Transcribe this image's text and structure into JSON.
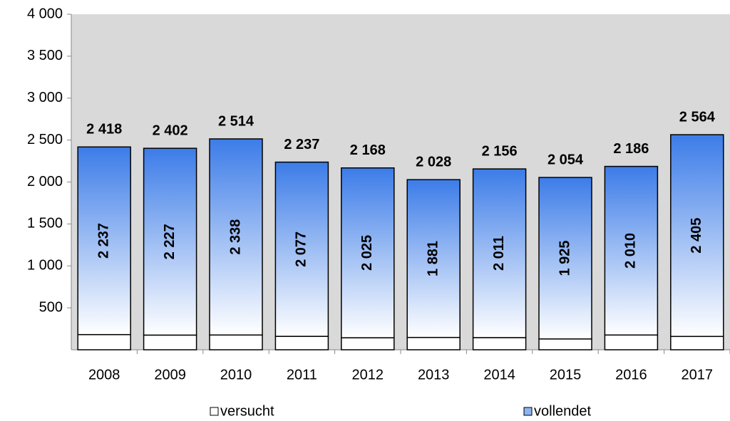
{
  "chart_data": {
    "type": "stacked_bar",
    "categories": [
      "2008",
      "2009",
      "2010",
      "2011",
      "2012",
      "2013",
      "2014",
      "2015",
      "2016",
      "2017"
    ],
    "series": [
      {
        "name": "versucht",
        "color": "#ffffff",
        "values": [
          181,
          175,
          176,
          160,
          143,
          147,
          145,
          129,
          176,
          159
        ]
      },
      {
        "name": "vollendet",
        "color": "#3c7ce8",
        "values": [
          2237,
          2227,
          2338,
          2077,
          2025,
          1881,
          2011,
          1925,
          2010,
          2405
        ],
        "value_labels": [
          "2 237",
          "2 227",
          "2 338",
          "2 077",
          "2 025",
          "1 881",
          "2 011",
          "1 925",
          "2 010",
          "2 405"
        ]
      }
    ],
    "totals": [
      2418,
      2402,
      2514,
      2237,
      2168,
      2028,
      2156,
      2054,
      2186,
      2564
    ],
    "total_labels": [
      "2 418",
      "2 402",
      "2 514",
      "2 237",
      "2 168",
      "2 028",
      "2 156",
      "2 054",
      "2 186",
      "2 564"
    ],
    "ylim": [
      0,
      4000
    ],
    "yticks": [
      {
        "value": 500,
        "label": "500"
      },
      {
        "value": 1000,
        "label": "1 000"
      },
      {
        "value": 1500,
        "label": "1 500"
      },
      {
        "value": 2000,
        "label": "2 000"
      },
      {
        "value": 2500,
        "label": "2 500"
      },
      {
        "value": 3000,
        "label": "3 000"
      },
      {
        "value": 3500,
        "label": "3 500"
      },
      {
        "value": 4000,
        "label": "4 000"
      }
    ],
    "plot_background": "#d9d9d9"
  }
}
